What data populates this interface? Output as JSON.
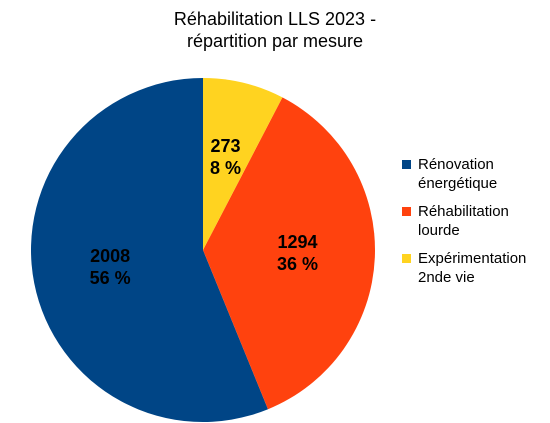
{
  "chart_data": {
    "type": "pie",
    "title": "Réhabilitation LLS 2023 - répartition par mesure",
    "categories": [
      "Rénovation énergétique",
      "Réhabilitation lourde",
      "Expérimentation 2nde vie"
    ],
    "values": [
      2008,
      1294,
      273
    ],
    "percent_labels": [
      "56 %",
      "36 %",
      "8 %"
    ],
    "colors": [
      "#004586",
      "#ff420e",
      "#ffd320"
    ],
    "legend": "right"
  }
}
